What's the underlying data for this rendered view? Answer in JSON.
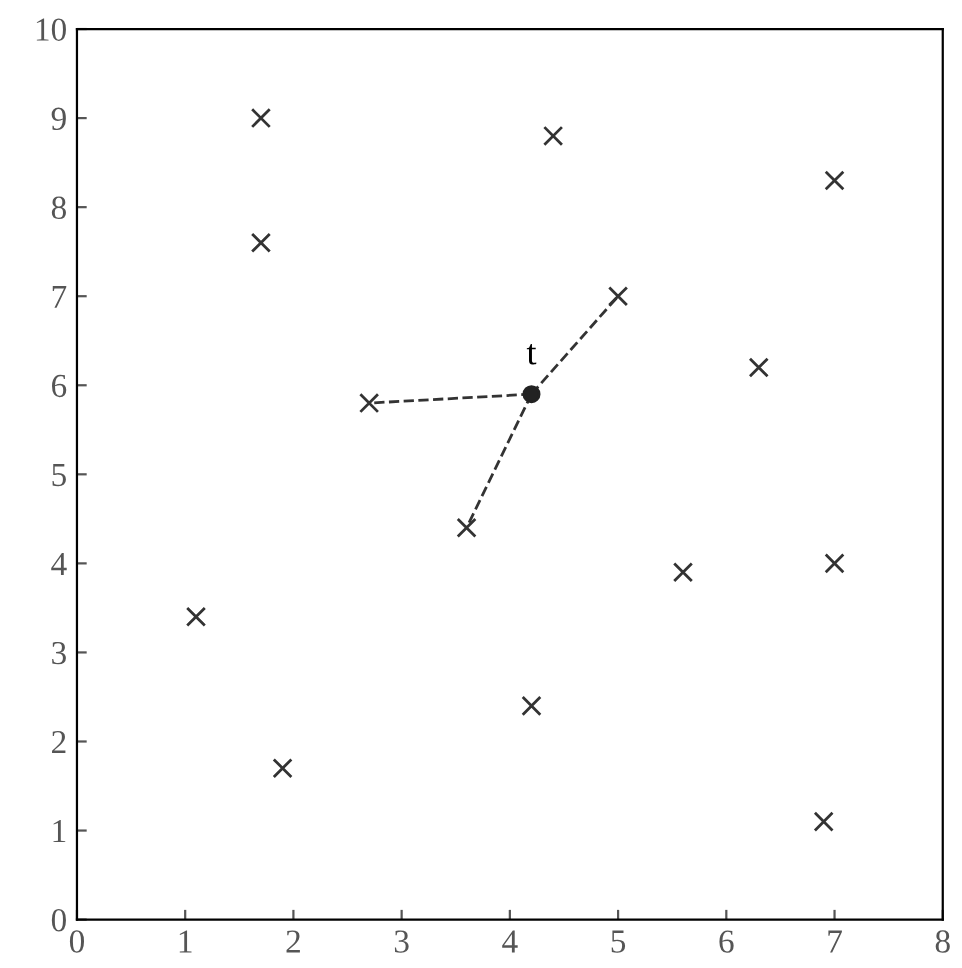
{
  "chart_data": {
    "type": "scatter",
    "xlim": [
      0,
      8
    ],
    "ylim": [
      0,
      10
    ],
    "xticks": [
      0,
      1,
      2,
      3,
      4,
      5,
      6,
      7,
      8
    ],
    "yticks": [
      0,
      1,
      2,
      3,
      4,
      5,
      6,
      7,
      8,
      9,
      10
    ],
    "grid": false,
    "legend": false,
    "series": [
      {
        "marker": "cross",
        "color": "#333333",
        "x": [
          1.7,
          4.4,
          7.0,
          1.7,
          5.0,
          6.3,
          2.7,
          3.6,
          5.6,
          7.0,
          1.1,
          4.2,
          1.9,
          6.9
        ],
        "values": [
          9.0,
          8.8,
          8.3,
          7.6,
          7.0,
          6.2,
          5.8,
          4.4,
          3.9,
          4.0,
          3.4,
          2.4,
          1.7,
          1.1
        ]
      },
      {
        "type": "line",
        "line_style": "dashed",
        "marker": "none",
        "color": "#333333",
        "x": [
          4.2,
          2.7
        ],
        "values": [
          5.9,
          5.8
        ]
      },
      {
        "type": "line",
        "line_style": "dashed",
        "marker": "none",
        "color": "#333333",
        "x": [
          4.2,
          5.0
        ],
        "values": [
          5.9,
          7.0
        ]
      },
      {
        "type": "line",
        "line_style": "dashed",
        "marker": "none",
        "color": "#333333",
        "x": [
          4.2,
          3.6
        ],
        "values": [
          5.9,
          4.4
        ]
      },
      {
        "type": "scatter",
        "marker": "circle",
        "color": "#222222",
        "x": [
          4.2
        ],
        "values": [
          5.9
        ]
      }
    ],
    "annotations": [
      {
        "text": "t",
        "x": 4.2,
        "y": 5.9
      }
    ]
  }
}
